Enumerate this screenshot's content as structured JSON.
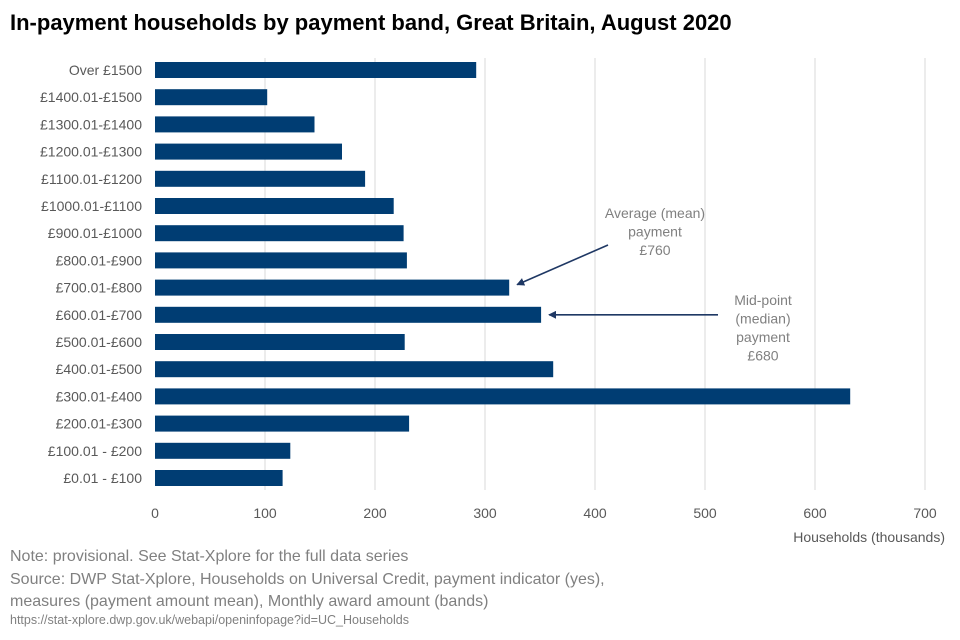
{
  "title": "In-payment households by payment band, Great Britain, August 2020",
  "colors": {
    "bar": "#003D73",
    "grid": "#D9D9D9",
    "axis_text": "#595959",
    "annotation_text": "#808080",
    "arrow": "#1F3864"
  },
  "chart_data": {
    "type": "bar",
    "orientation": "horizontal",
    "title": "In-payment households by payment band, Great Britain, August 2020",
    "categories": [
      "Over £1500",
      "£1400.01-£1500",
      "£1300.01-£1400",
      "£1200.01-£1300",
      "£1100.01-£1200",
      "£1000.01-£1100",
      "£900.01-£1000",
      "£800.01-£900",
      "£700.01-£800",
      "£600.01-£700",
      "£500.01-£600",
      "£400.01-£500",
      "£300.01-£400",
      "£200.01-£300",
      "£100.01 - £200",
      "£0.01 - £100"
    ],
    "values": [
      292,
      102,
      145,
      170,
      191,
      217,
      226,
      229,
      322,
      351,
      227,
      362,
      632,
      231,
      123,
      116
    ],
    "xlabel": "Households  (thousands)",
    "ylabel": "",
    "xlim": [
      0,
      700
    ],
    "xticks": [
      0,
      100,
      200,
      300,
      400,
      500,
      600,
      700
    ],
    "grid": true,
    "annotations": [
      {
        "lines": [
          "Average (mean)",
          "payment",
          "£760"
        ],
        "target_category": "£700.01-£800"
      },
      {
        "lines": [
          "Mid-point",
          "(median)",
          "payment",
          "£680"
        ],
        "target_category": "£600.01-£700"
      }
    ]
  },
  "notes": {
    "note": "Note: provisional. See Stat-Xplore for the full data series",
    "source_line1": "Source: DWP Stat-Xplore, Households on Universal Credit, payment indicator (yes),",
    "source_line2": "measures (payment amount mean),  Monthly award amount (bands)",
    "url": "https://stat-xplore.dwp.gov.uk/webapi/openinfopage?id=UC_Households"
  }
}
